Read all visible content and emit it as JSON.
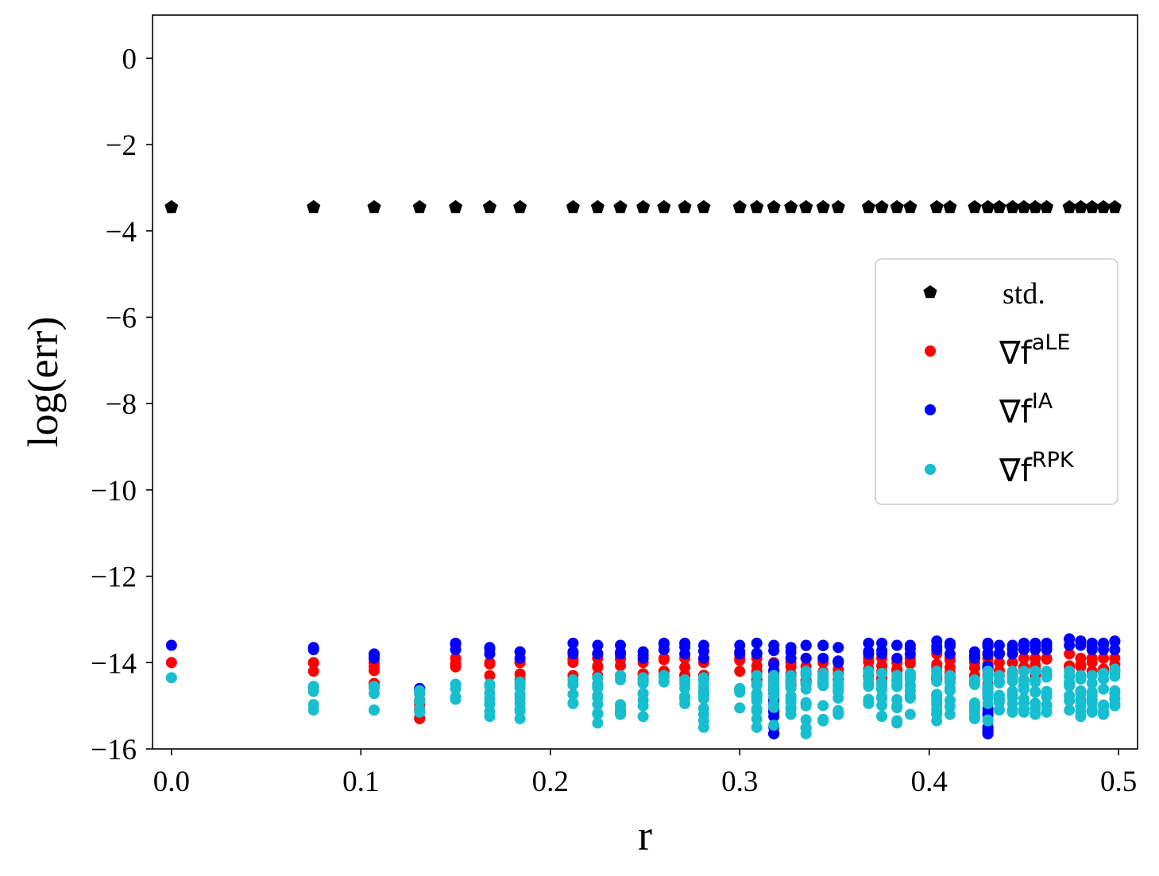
{
  "chart_data": {
    "type": "scatter",
    "xlabel": "r",
    "ylabel": "log(err)",
    "xlim": [
      -0.01,
      0.51
    ],
    "ylim": [
      -16,
      1
    ],
    "xticks": [
      0.0,
      0.1,
      0.2,
      0.3,
      0.4,
      0.5
    ],
    "xtick_labels": [
      "0.0",
      "0.1",
      "0.2",
      "0.3",
      "0.4",
      "0.5"
    ],
    "yticks": [
      0,
      -2,
      -4,
      -6,
      -8,
      -10,
      -12,
      -14,
      -16
    ],
    "ytick_labels": [
      "0",
      "−2",
      "−4",
      "−6",
      "−8",
      "−10",
      "−12",
      "−14",
      "−16"
    ],
    "grid": false,
    "legend_position": "center-right",
    "x": [
      0.0,
      0.075,
      0.107,
      0.131,
      0.15,
      0.168,
      0.184,
      0.212,
      0.225,
      0.237,
      0.249,
      0.26,
      0.271,
      0.281,
      0.3,
      0.309,
      0.318,
      0.327,
      0.335,
      0.344,
      0.352,
      0.368,
      0.375,
      0.383,
      0.39,
      0.404,
      0.411,
      0.424,
      0.431,
      0.437,
      0.444,
      0.45,
      0.456,
      0.462,
      0.474,
      0.48,
      0.486,
      0.492,
      0.498
    ],
    "series": [
      {
        "name": "std.",
        "marker": "pentagon",
        "color": "#000000",
        "x": [
          0.0,
          0.075,
          0.107,
          0.131,
          0.15,
          0.168,
          0.184,
          0.212,
          0.225,
          0.237,
          0.249,
          0.26,
          0.271,
          0.281,
          0.3,
          0.309,
          0.318,
          0.327,
          0.335,
          0.344,
          0.352,
          0.368,
          0.375,
          0.383,
          0.39,
          0.404,
          0.411,
          0.424,
          0.431,
          0.437,
          0.444,
          0.45,
          0.456,
          0.462,
          0.474,
          0.48,
          0.486,
          0.492,
          0.498
        ],
        "y": [
          -3.45,
          -3.45,
          -3.45,
          -3.45,
          -3.45,
          -3.45,
          -3.45,
          -3.45,
          -3.45,
          -3.45,
          -3.45,
          -3.45,
          -3.45,
          -3.45,
          -3.45,
          -3.45,
          -3.45,
          -3.45,
          -3.45,
          -3.45,
          -3.45,
          -3.45,
          -3.45,
          -3.45,
          -3.45,
          -3.45,
          -3.45,
          -3.45,
          -3.45,
          -3.45,
          -3.45,
          -3.45,
          -3.45,
          -3.45,
          -3.45,
          -3.45,
          -3.45,
          -3.45,
          -3.45
        ]
      },
      {
        "name": "∇f^aLE",
        "marker": "circle",
        "color": "#ff0000",
        "x": [
          0.0,
          0.075,
          0.107,
          0.131,
          0.15,
          0.168,
          0.184,
          0.212,
          0.225,
          0.237,
          0.249,
          0.26,
          0.271,
          0.281,
          0.3,
          0.309,
          0.318,
          0.327,
          0.335,
          0.344,
          0.352,
          0.368,
          0.375,
          0.383,
          0.39,
          0.404,
          0.411,
          0.424,
          0.431,
          0.437,
          0.444,
          0.45,
          0.456,
          0.462,
          0.474,
          0.48,
          0.486,
          0.492,
          0.498
        ],
        "y_min": [
          -14.0,
          -14.2,
          -14.5,
          -15.3,
          -14.1,
          -14.3,
          -14.4,
          -14.3,
          -14.3,
          -14.3,
          -14.4,
          -14.2,
          -14.3,
          -14.4,
          -14.2,
          -14.4,
          -14.5,
          -14.5,
          -14.5,
          -14.5,
          -14.4,
          -14.3,
          -14.4,
          -14.4,
          -14.3,
          -14.4,
          -14.4,
          -14.3,
          -14.5,
          -14.3,
          -14.3,
          -14.2,
          -14.3,
          -14.3,
          -14.1,
          -14.1,
          -14.2,
          -14.2,
          -14.2
        ],
        "y_max": [
          -14.0,
          -14.0,
          -14.0,
          -14.6,
          -13.9,
          -14.0,
          -14.0,
          -13.9,
          -13.9,
          -13.9,
          -14.0,
          -13.9,
          -13.9,
          -14.0,
          -13.9,
          -13.9,
          -14.0,
          -14.0,
          -13.9,
          -14.0,
          -14.0,
          -13.9,
          -13.9,
          -14.0,
          -13.9,
          -13.8,
          -13.9,
          -14.0,
          -13.9,
          -14.0,
          -14.0,
          -13.9,
          -13.9,
          -13.9,
          -13.8,
          -13.9,
          -13.9,
          -13.9,
          -13.9
        ]
      },
      {
        "name": "∇f^IA",
        "marker": "circle",
        "color": "#0000ff",
        "x": [
          0.0,
          0.075,
          0.107,
          0.131,
          0.15,
          0.168,
          0.184,
          0.212,
          0.225,
          0.237,
          0.249,
          0.26,
          0.271,
          0.281,
          0.3,
          0.309,
          0.318,
          0.327,
          0.335,
          0.344,
          0.352,
          0.368,
          0.375,
          0.383,
          0.39,
          0.404,
          0.411,
          0.424,
          0.431,
          0.437,
          0.444,
          0.45,
          0.456,
          0.462,
          0.474,
          0.48,
          0.486,
          0.492,
          0.498
        ],
        "y_min": [
          -13.6,
          -13.7,
          -13.9,
          -14.7,
          -13.7,
          -13.8,
          -13.9,
          -13.8,
          -13.8,
          -13.8,
          -13.9,
          -13.7,
          -13.8,
          -13.9,
          -13.8,
          -13.8,
          -15.65,
          -13.9,
          -13.9,
          -13.9,
          -14.0,
          -13.8,
          -13.8,
          -13.9,
          -13.8,
          -13.7,
          -13.8,
          -13.9,
          -15.65,
          -13.8,
          -13.8,
          -13.7,
          -13.7,
          -13.7,
          -13.6,
          -13.6,
          -13.7,
          -13.7,
          -13.7
        ],
        "y_max": [
          -13.6,
          -13.65,
          -13.8,
          -14.6,
          -13.55,
          -13.65,
          -13.75,
          -13.55,
          -13.6,
          -13.6,
          -13.75,
          -13.55,
          -13.55,
          -13.6,
          -13.6,
          -13.55,
          -13.6,
          -13.65,
          -13.6,
          -13.6,
          -13.65,
          -13.55,
          -13.55,
          -13.6,
          -13.6,
          -13.5,
          -13.55,
          -13.75,
          -13.55,
          -13.6,
          -13.6,
          -13.55,
          -13.55,
          -13.55,
          -13.45,
          -13.5,
          -13.55,
          -13.55,
          -13.5
        ],
        "outliers": [
          {
            "x": 0.318,
            "y": -15.65
          },
          {
            "x": 0.431,
            "y": -15.65
          }
        ]
      },
      {
        "name": "∇f^RPK",
        "marker": "circle",
        "color": "#17becf",
        "x": [
          0.0,
          0.075,
          0.107,
          0.131,
          0.15,
          0.168,
          0.184,
          0.212,
          0.225,
          0.237,
          0.249,
          0.26,
          0.271,
          0.281,
          0.3,
          0.309,
          0.318,
          0.327,
          0.335,
          0.344,
          0.352,
          0.368,
          0.375,
          0.383,
          0.39,
          0.404,
          0.411,
          0.424,
          0.431,
          0.437,
          0.444,
          0.45,
          0.456,
          0.462,
          0.474,
          0.48,
          0.486,
          0.492,
          0.498
        ],
        "y_min": [
          -14.35,
          -15.1,
          -15.1,
          -15.15,
          -14.85,
          -15.25,
          -15.3,
          -14.95,
          -15.4,
          -15.2,
          -15.25,
          -14.45,
          -14.95,
          -15.5,
          -15.05,
          -15.5,
          -15.45,
          -15.2,
          -15.65,
          -15.35,
          -15.2,
          -14.95,
          -15.25,
          -15.4,
          -15.2,
          -15.35,
          -15.2,
          -15.3,
          -15.35,
          -15.1,
          -15.15,
          -15.15,
          -15.2,
          -15.15,
          -15.1,
          -15.25,
          -15.15,
          -15.2,
          -15.0
        ],
        "y_max": [
          -14.35,
          -14.55,
          -14.55,
          -14.65,
          -14.5,
          -14.5,
          -14.45,
          -14.4,
          -14.35,
          -14.3,
          -14.35,
          -14.3,
          -14.4,
          -14.35,
          -14.6,
          -14.3,
          -14.3,
          -14.3,
          -14.2,
          -14.25,
          -14.3,
          -14.2,
          -14.25,
          -14.3,
          -14.25,
          -14.2,
          -14.3,
          -14.4,
          -14.2,
          -14.3,
          -14.2,
          -14.2,
          -14.2,
          -14.2,
          -14.2,
          -14.3,
          -14.3,
          -14.25,
          -14.15
        ]
      }
    ],
    "legend": {
      "std": "std.",
      "ale_base": "∇f",
      "ale_sup": "aLE",
      "ia_base": "∇f",
      "ia_sup": "IA",
      "rpk_base": "∇f",
      "rpk_sup": "RPK"
    }
  }
}
